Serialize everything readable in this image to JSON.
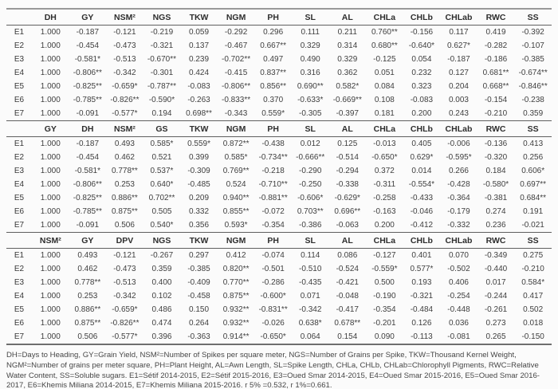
{
  "colors": {
    "background": "#fbfbfb",
    "text": "#3f3f3f",
    "rule_dark": "#5f5f5f",
    "rule_light": "#999999"
  },
  "tables": [
    {
      "key": "dh-section",
      "columns": [
        "DH",
        "GY",
        "NSM²",
        "NGS",
        "TKW",
        "NGM",
        "PH",
        "SL",
        "AL",
        "CHLa",
        "CHLb",
        "CHLab",
        "RWC",
        "SS"
      ],
      "rows": [
        {
          "label": "E1",
          "values": [
            "1.000",
            "-0.187",
            "-0.121",
            "-0.219",
            "0.059",
            "-0.292",
            "0.296",
            "0.111",
            "0.211",
            "0.760**",
            "-0.156",
            "0.117",
            "0.419",
            "-0.392"
          ]
        },
        {
          "label": "E2",
          "values": [
            "1.000",
            "-0.454",
            "-0.473",
            "-0.321",
            "0.137",
            "-0.467",
            "0.667**",
            "0.329",
            "0.314",
            "0.680**",
            "-0.640*",
            "0.627*",
            "-0.282",
            "-0.107"
          ]
        },
        {
          "label": "E3",
          "values": [
            "1.000",
            "-0.581*",
            "-0.513",
            "-0.670**",
            "0.239",
            "-0.702**",
            "0.497",
            "0.490",
            "0.329",
            "-0.125",
            "0.054",
            "-0.187",
            "-0.186",
            "-0.385"
          ]
        },
        {
          "label": "E4",
          "values": [
            "1.000",
            "-0.806**",
            "-0.342",
            "-0.301",
            "0.424",
            "-0.415",
            "0.837**",
            "0.316",
            "0.362",
            "0.051",
            "0.232",
            "0.127",
            "0.681**",
            "-0.674**"
          ]
        },
        {
          "label": "E5",
          "values": [
            "1.000",
            "-0.825**",
            "-0.659*",
            "-0.787**",
            "-0.083",
            "-0.806**",
            "0.856**",
            "0.690**",
            "0.582*",
            "0.084",
            "0.323",
            "0.204",
            "0.668**",
            "-0.846**"
          ]
        },
        {
          "label": "E6",
          "values": [
            "1.000",
            "-0.785**",
            "-0.826**",
            "-0.590*",
            "-0.263",
            "-0.833**",
            "0.370",
            "-0.633*",
            "-0.669**",
            "0.108",
            "-0.083",
            "0.003",
            "-0.154",
            "-0.238"
          ]
        },
        {
          "label": "E7",
          "values": [
            "1.000",
            "-0.091",
            "-0.577*",
            "0.194",
            "0.698**",
            "-0.343",
            "0.559*",
            "-0.305",
            "-0.397",
            "0.181",
            "0.200",
            "0.243",
            "-0.210",
            "0.359"
          ]
        }
      ]
    },
    {
      "key": "gy-section",
      "columns": [
        "GY",
        "DH",
        "NSM²",
        "GS",
        "TKW",
        "NGM",
        "PH",
        "SL",
        "AL",
        "CHLa",
        "CHLb",
        "CHLab",
        "RWC",
        "SS"
      ],
      "rows": [
        {
          "label": "E1",
          "values": [
            "1.000",
            "-0.187",
            "0.493",
            "0.585*",
            "0.559*",
            "0.872**",
            "-0.438",
            "0.012",
            "0.125",
            "-0.013",
            "0.405",
            "-0.006",
            "-0.136",
            "0.413"
          ]
        },
        {
          "label": "E2",
          "values": [
            "1.000",
            "-0.454",
            "0.462",
            "0.521",
            "0.399",
            "0.585*",
            "-0.734**",
            "-0.666**",
            "-0.514",
            "-0.650*",
            "0.629*",
            "-0.595*",
            "-0.320",
            "0.256"
          ]
        },
        {
          "label": "E3",
          "values": [
            "1.000",
            "-0.581*",
            "0.778**",
            "0.537*",
            "-0.309",
            "0.769**",
            "-0.218",
            "-0.290",
            "-0.294",
            "0.372",
            "0.014",
            "0.266",
            "0.184",
            "0.606*"
          ]
        },
        {
          "label": "E4",
          "values": [
            "1.000",
            "-0.806**",
            "0.253",
            "0.640*",
            "-0.485",
            "0.524",
            "-0.710**",
            "-0.250",
            "-0.338",
            "-0.311",
            "-0.554*",
            "-0.428",
            "-0.580*",
            "0.697**"
          ]
        },
        {
          "label": "E5",
          "values": [
            "1.000",
            "-0.825**",
            "0.886**",
            "0.702**",
            "0.209",
            "0.940**",
            "-0.881**",
            "-0.606*",
            "-0.629*",
            "-0.258",
            "-0.433",
            "-0.364",
            "-0.381",
            "0.684**"
          ]
        },
        {
          "label": "E6",
          "values": [
            "1.000",
            "-0.785**",
            "0.875**",
            "0.505",
            "0.332",
            "0.855**",
            "-0.072",
            "0.703**",
            "0.696**",
            "-0.163",
            "-0.046",
            "-0.179",
            "0.274",
            "0.191"
          ]
        },
        {
          "label": "E7",
          "values": [
            "1.000",
            "-0.091",
            "0.506",
            "0.540*",
            "0.356",
            "0.593*",
            "-0.354",
            "-0.386",
            "-0.063",
            "0.200",
            "-0.412",
            "-0.332",
            "0.236",
            "-0.021"
          ]
        }
      ]
    },
    {
      "key": "nsm-section",
      "columns": [
        "NSM²",
        "GY",
        "DPV",
        "NGS",
        "TKW",
        "NGM",
        "PH",
        "SL",
        "AL",
        "CHLa",
        "CHLb",
        "CHLab",
        "RWC",
        "SS"
      ],
      "rows": [
        {
          "label": "E1",
          "values": [
            "1.000",
            "0.493",
            "-0.121",
            "-0.267",
            "0.297",
            "0.412",
            "-0.074",
            "0.114",
            "0.086",
            "-0.127",
            "0.401",
            "0.070",
            "-0.349",
            "0.275"
          ]
        },
        {
          "label": "E2",
          "values": [
            "1.000",
            "0.462",
            "-0.473",
            "0.359",
            "-0.385",
            "0.820**",
            "-0.501",
            "-0.510",
            "-0.524",
            "-0.559*",
            "0.577*",
            "-0.502",
            "-0.440",
            "-0.210"
          ]
        },
        {
          "label": "E3",
          "values": [
            "1.000",
            "0.778**",
            "-0.513",
            "0.400",
            "-0.409",
            "0.770**",
            "-0.286",
            "-0.435",
            "-0.421",
            "0.500",
            "0.193",
            "0.406",
            "0.017",
            "0.584*"
          ]
        },
        {
          "label": "E4",
          "values": [
            "1.000",
            "0.253",
            "-0.342",
            "0.102",
            "-0.458",
            "0.875**",
            "-0.600*",
            "0.071",
            "-0.048",
            "-0.190",
            "-0.321",
            "-0.254",
            "-0.244",
            "0.417"
          ]
        },
        {
          "label": "E5",
          "values": [
            "1.000",
            "0.886**",
            "-0.659*",
            "0.486",
            "0.150",
            "0.932**",
            "-0.831**",
            "-0.342",
            "-0.417",
            "-0.354",
            "-0.484",
            "-0.448",
            "-0.261",
            "0.502"
          ]
        },
        {
          "label": "E6",
          "values": [
            "1.000",
            "0.875**",
            "-0.826**",
            "0.474",
            "0.264",
            "0.932**",
            "-0.026",
            "0.638*",
            "0.678**",
            "-0.201",
            "0.126",
            "0.036",
            "0.273",
            "0.018"
          ]
        },
        {
          "label": "E7",
          "values": [
            "1.000",
            "0.506",
            "-0.577*",
            "0.396",
            "-0.363",
            "0.914**",
            "-0.650*",
            "0.064",
            "0.154",
            "0.090",
            "-0.113",
            "-0.081",
            "0.265",
            "-0.150"
          ]
        }
      ]
    }
  ],
  "footnote": {
    "text": "DH=Days to Heading, GY=Grain Yield, NSM²=Number of Spikes per square meter, NGS=Number of Grains per Spike, TKW=Thousand Kernel Weight, NGM²=Number of grains per meter square, PH=Plant Height, AL=Awn Length, SL=Spike Length, CHLa, CHLb, CHLab=Chlorophyll Pigments, RWC=Relative Water Content, SS=Soluble sugars. E1=Sétif 2014-2015, E2=Sétif 2015-2016, E3=Oued Smar 2014-2015, E4=Oued Smar 2015-2016, E5=Oued Smar 2016-2017, E6=Khemis Miliana 2014-2015, E7=Khemis Miliana 2015-2016. r 5% =0.532, r 1%=0.661."
  }
}
